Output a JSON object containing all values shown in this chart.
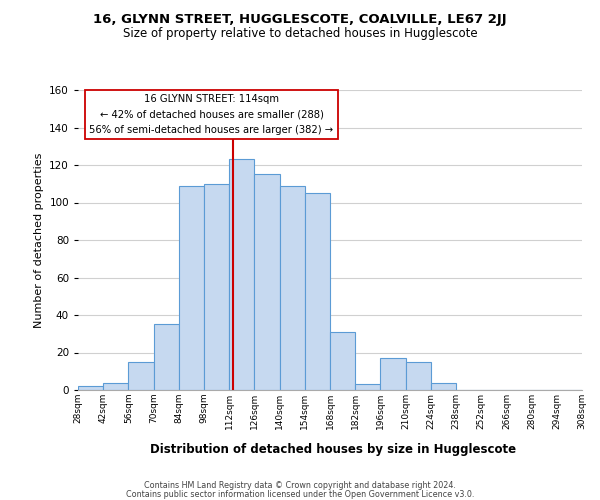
{
  "title": "16, GLYNN STREET, HUGGLESCOTE, COALVILLE, LE67 2JJ",
  "subtitle": "Size of property relative to detached houses in Hugglescote",
  "xlabel": "Distribution of detached houses by size in Hugglescote",
  "ylabel": "Number of detached properties",
  "footer_line1": "Contains HM Land Registry data © Crown copyright and database right 2024.",
  "footer_line2": "Contains public sector information licensed under the Open Government Licence v3.0.",
  "bin_edges": [
    28,
    42,
    56,
    70,
    84,
    98,
    112,
    126,
    140,
    154,
    168,
    182,
    196,
    210,
    224,
    238,
    252,
    266,
    280,
    294,
    308
  ],
  "bin_labels": [
    "28sqm",
    "42sqm",
    "56sqm",
    "70sqm",
    "84sqm",
    "98sqm",
    "112sqm",
    "126sqm",
    "140sqm",
    "154sqm",
    "168sqm",
    "182sqm",
    "196sqm",
    "210sqm",
    "224sqm",
    "238sqm",
    "252sqm",
    "266sqm",
    "280sqm",
    "294sqm",
    "308sqm"
  ],
  "counts": [
    2,
    4,
    15,
    35,
    109,
    110,
    123,
    115,
    109,
    105,
    31,
    3,
    17,
    15,
    4,
    0,
    0,
    0,
    0,
    0
  ],
  "bar_color": "#c6d9f0",
  "bar_edge_color": "#5b9bd5",
  "vline_x": 114,
  "vline_color": "#cc0000",
  "annotation_title": "16 GLYNN STREET: 114sqm",
  "annotation_line1": "← 42% of detached houses are smaller (288)",
  "annotation_line2": "56% of semi-detached houses are larger (382) →",
  "annotation_box_color": "#ffffff",
  "annotation_box_edge_color": "#cc0000",
  "ylim": [
    0,
    160
  ],
  "yticks": [
    0,
    20,
    40,
    60,
    80,
    100,
    120,
    140,
    160
  ],
  "background_color": "#ffffff",
  "grid_color": "#d0d0d0"
}
